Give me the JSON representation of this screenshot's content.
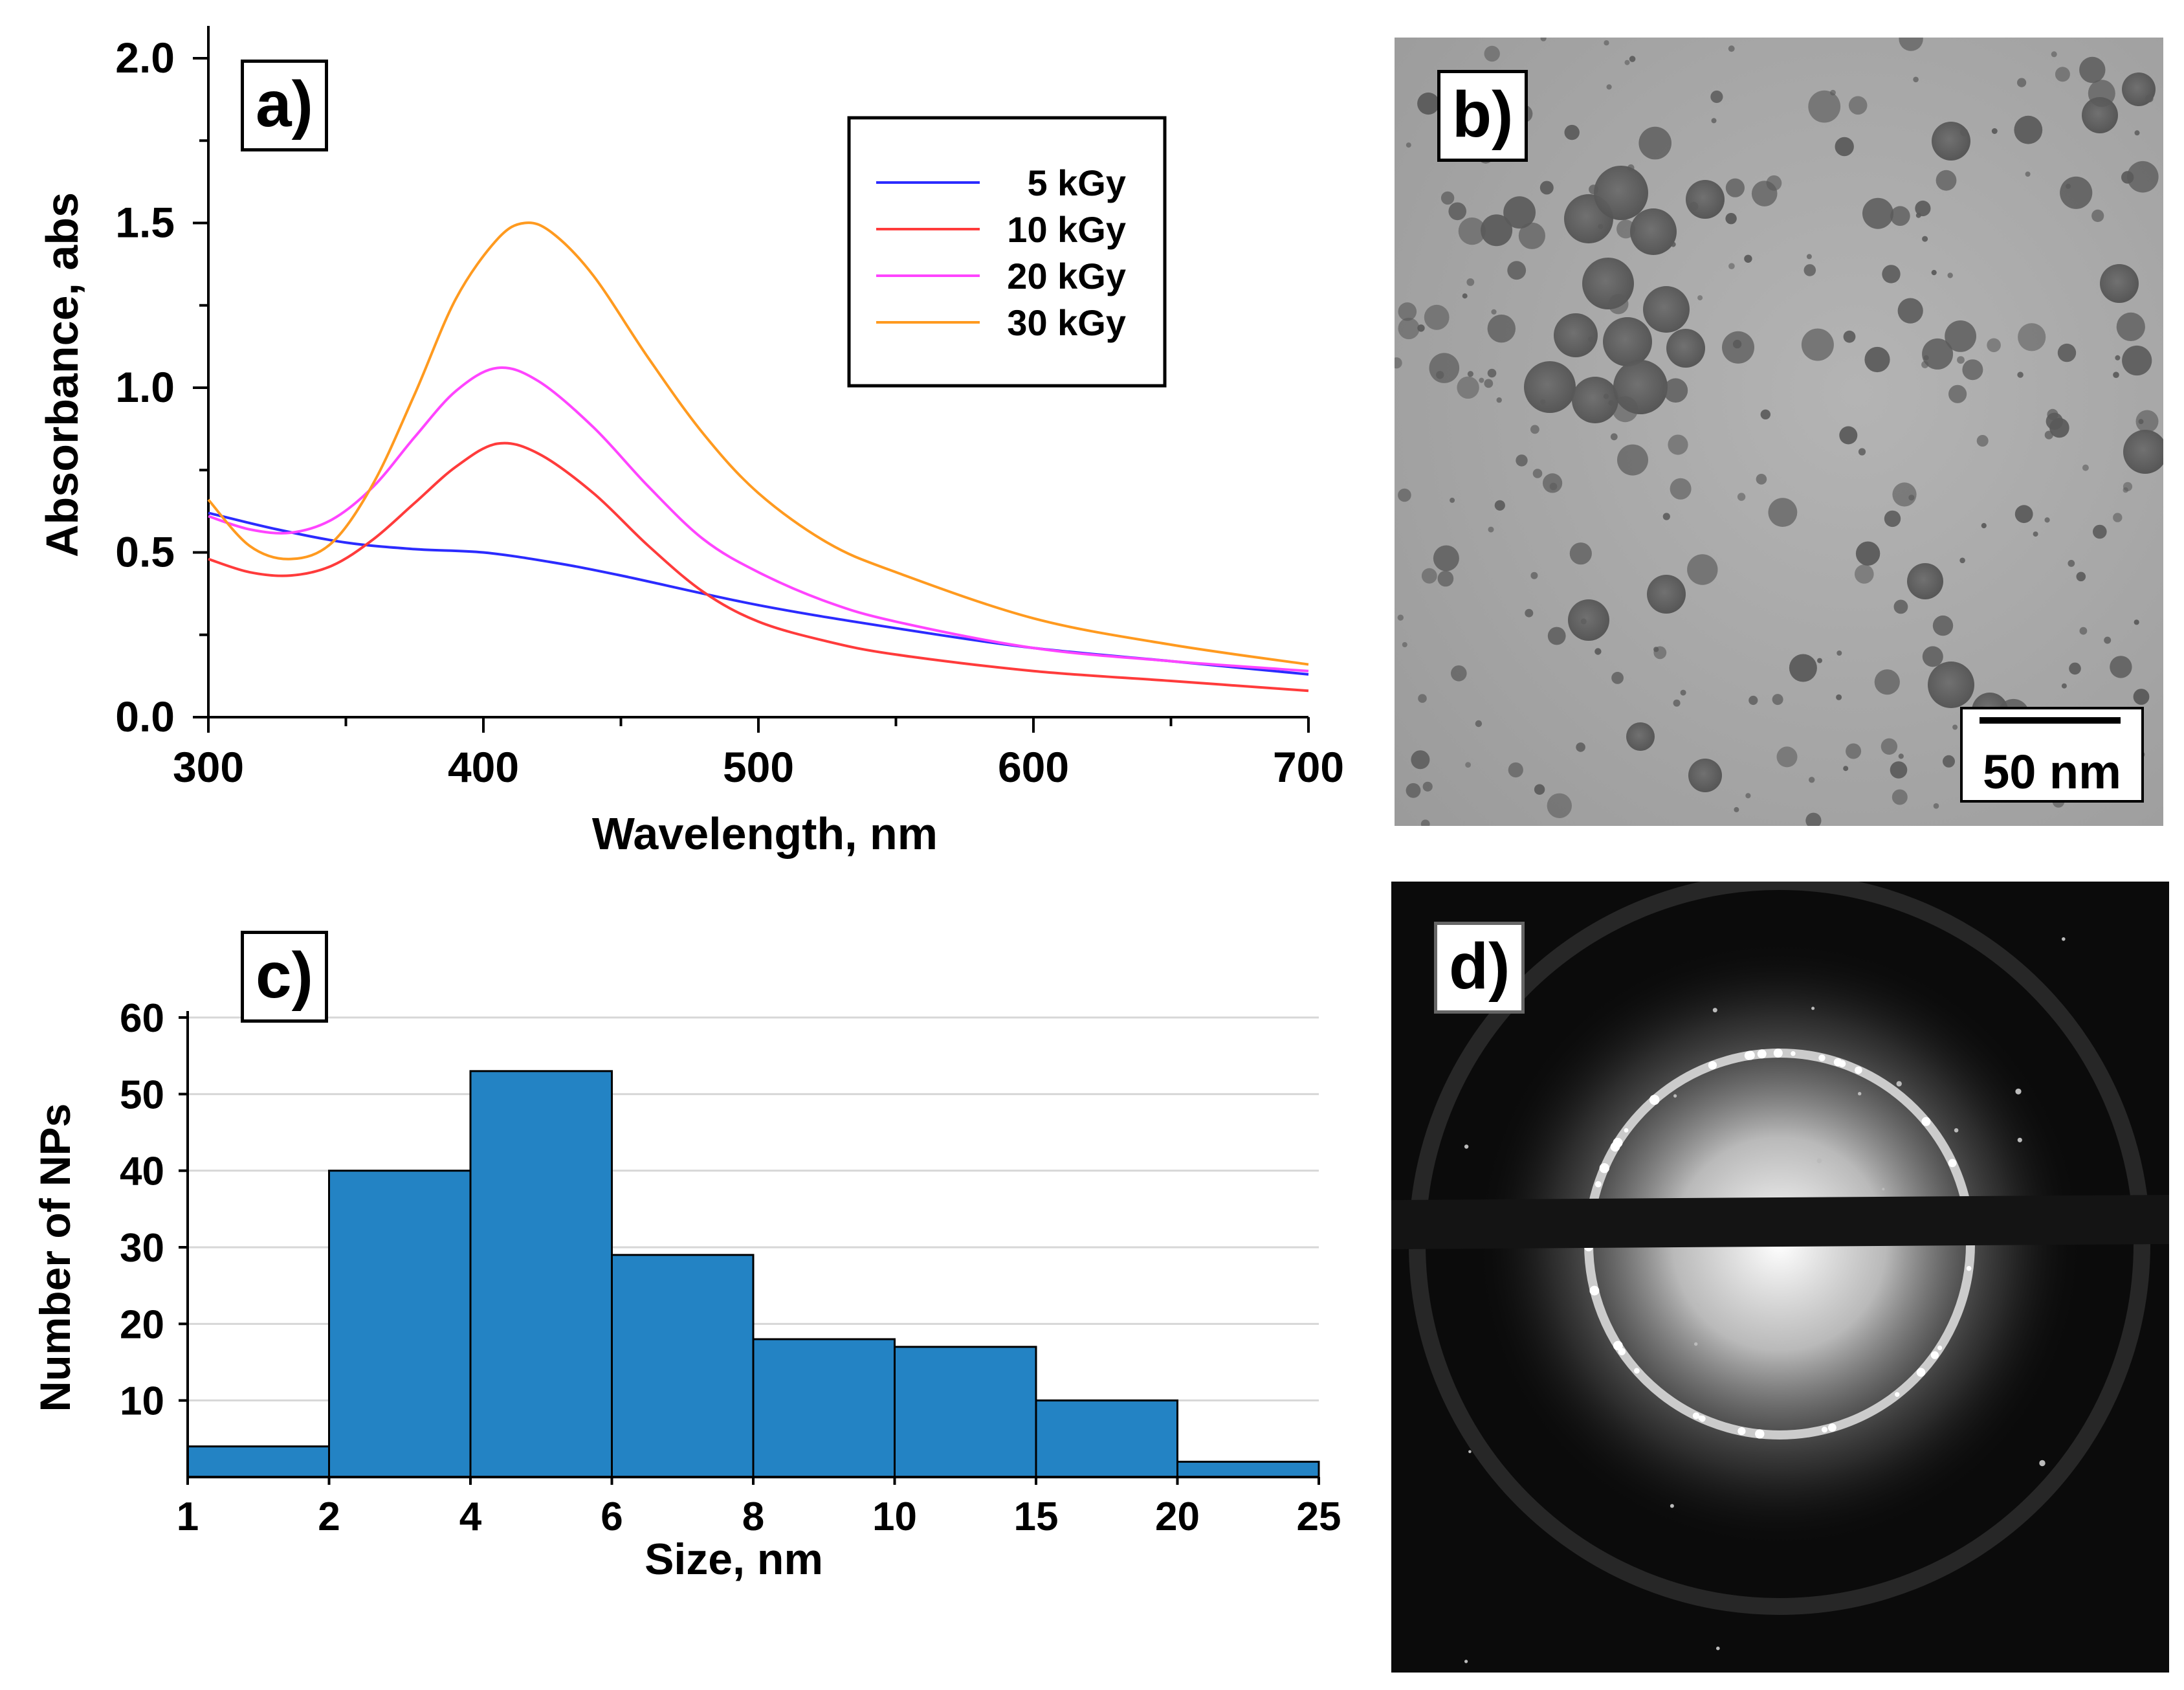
{
  "panels": {
    "a": {
      "label": "a)"
    },
    "b": {
      "label": "b)",
      "scale_bar": "50 nm"
    },
    "c": {
      "label": "c)"
    },
    "d": {
      "label": "d)"
    }
  },
  "chart_data": [
    {
      "panel": "a",
      "type": "line",
      "xlabel": "Wavelength, nm",
      "ylabel": "Absorbance, abs",
      "xlim": [
        300,
        700
      ],
      "ylim": [
        0,
        2.0
      ],
      "xticks": [
        "300",
        "400",
        "500",
        "600",
        "700"
      ],
      "yticks": [
        "0.0",
        "0.5",
        "1.0",
        "1.5",
        "2.0"
      ],
      "legend_position": "top-right",
      "series": [
        {
          "name": "5 kGy",
          "color": "#2b2bff",
          "x": [
            300,
            325,
            350,
            375,
            400,
            425,
            450,
            500,
            550,
            600,
            650,
            700
          ],
          "y": [
            0.62,
            0.57,
            0.53,
            0.51,
            0.5,
            0.47,
            0.43,
            0.34,
            0.27,
            0.21,
            0.17,
            0.13
          ]
        },
        {
          "name": "10 kGy",
          "color": "#ff3b3b",
          "x": [
            300,
            315,
            330,
            345,
            360,
            375,
            390,
            405,
            420,
            440,
            460,
            480,
            500,
            525,
            550,
            600,
            650,
            700
          ],
          "y": [
            0.48,
            0.44,
            0.43,
            0.46,
            0.54,
            0.65,
            0.76,
            0.83,
            0.8,
            0.68,
            0.52,
            0.38,
            0.29,
            0.23,
            0.19,
            0.14,
            0.11,
            0.08
          ]
        },
        {
          "name": "20 kGy",
          "color": "#ff44ff",
          "x": [
            300,
            315,
            330,
            345,
            360,
            375,
            390,
            405,
            420,
            440,
            460,
            480,
            500,
            525,
            550,
            600,
            650,
            700
          ],
          "y": [
            0.61,
            0.57,
            0.56,
            0.6,
            0.7,
            0.85,
            0.99,
            1.06,
            1.02,
            0.88,
            0.7,
            0.54,
            0.44,
            0.35,
            0.29,
            0.21,
            0.17,
            0.14
          ]
        },
        {
          "name": "30 kGy",
          "color": "#ff9a1f",
          "x": [
            300,
            315,
            330,
            345,
            360,
            375,
            390,
            405,
            415,
            425,
            440,
            460,
            480,
            500,
            525,
            550,
            600,
            650,
            700
          ],
          "y": [
            0.66,
            0.52,
            0.48,
            0.53,
            0.71,
            0.98,
            1.27,
            1.45,
            1.5,
            1.47,
            1.34,
            1.09,
            0.86,
            0.68,
            0.53,
            0.44,
            0.3,
            0.22,
            0.16
          ]
        }
      ]
    },
    {
      "panel": "c",
      "type": "bar",
      "xlabel": "Size, nm",
      "ylabel": "Number of NPs",
      "ylim": [
        0,
        60
      ],
      "yticks": [
        "10",
        "20",
        "30",
        "40",
        "50",
        "60"
      ],
      "bin_edges": [
        "1",
        "2",
        "4",
        "6",
        "8",
        "10",
        "15",
        "20",
        "25"
      ],
      "values": [
        4,
        40,
        53,
        29,
        18,
        17,
        10,
        2
      ],
      "color": "#2383c4",
      "grid": true
    }
  ]
}
